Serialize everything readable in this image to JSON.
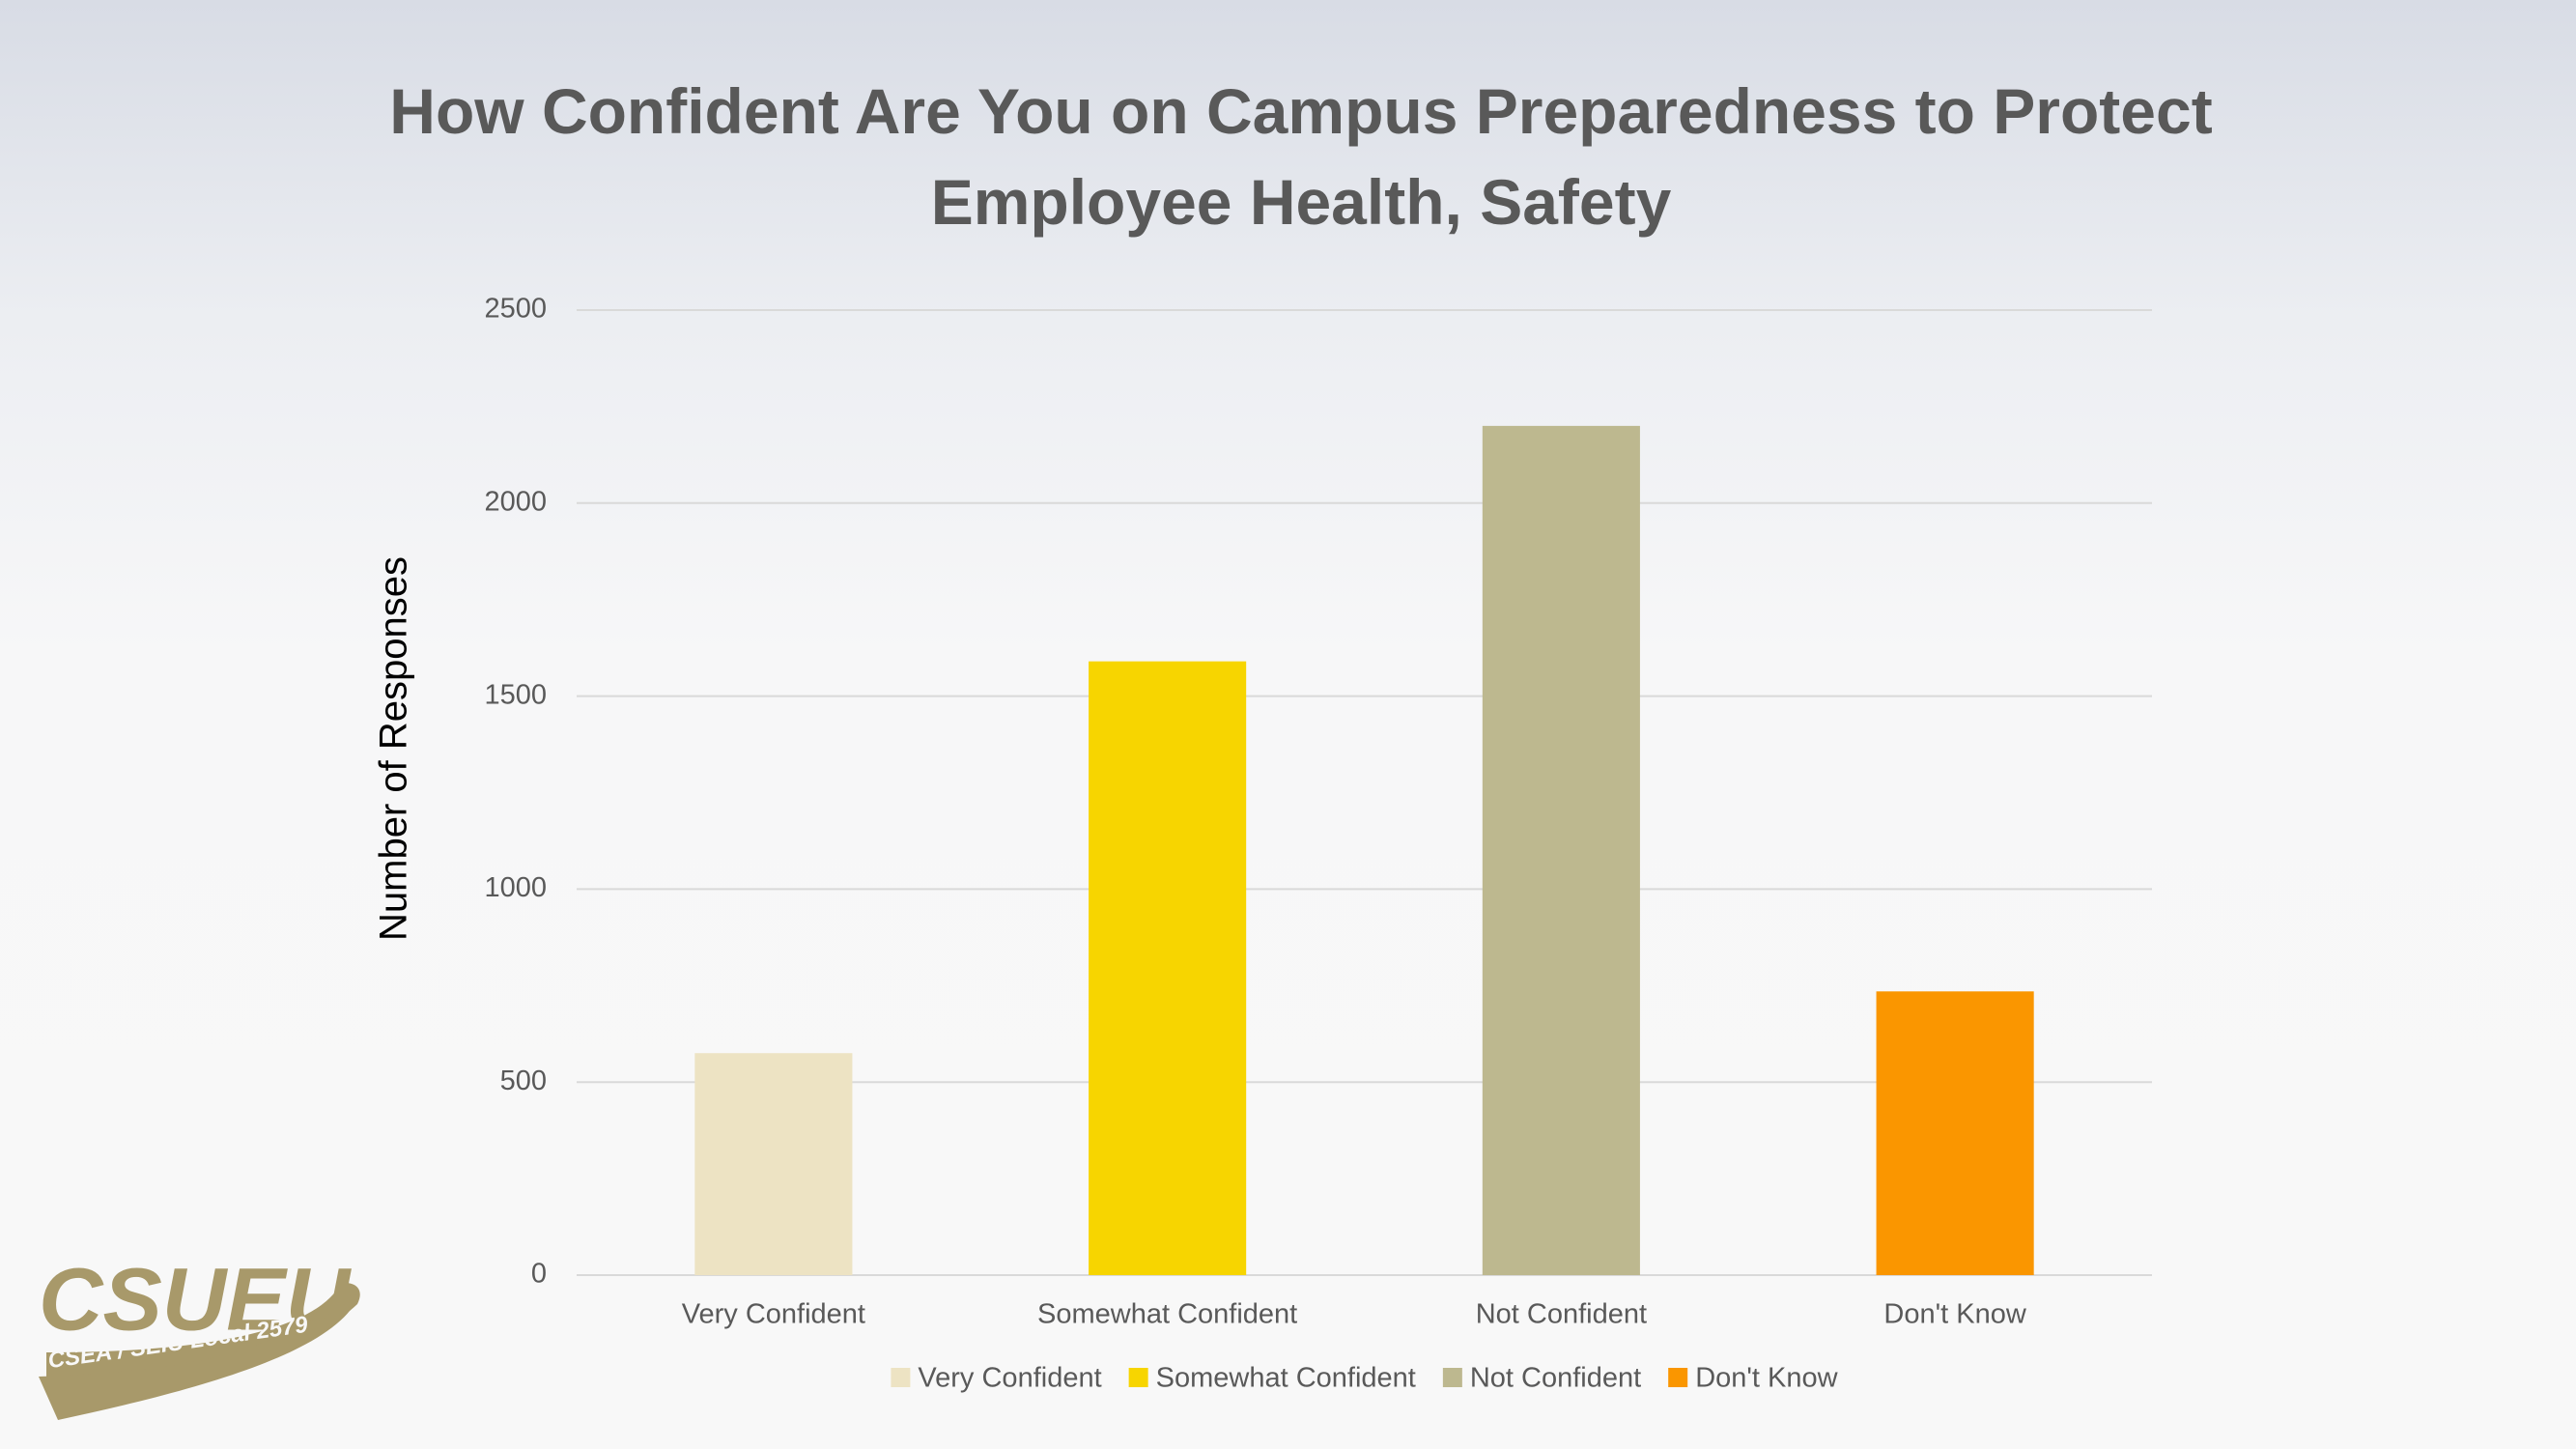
{
  "chart_data": {
    "type": "bar",
    "title": "How Confident Are You on Campus Preparedness to Protect Employee Health, Safety",
    "y_label": "Number of Responses",
    "categories": [
      "Very Confident",
      "Somewhat Confident",
      "Not Confident",
      "Don't Know"
    ],
    "values": [
      575,
      1590,
      2200,
      735
    ],
    "colors": [
      "#ede3c3",
      "#f7d500",
      "#bdb88f",
      "#fa9600"
    ],
    "ylim": [
      0,
      2500
    ],
    "yticks": [
      0,
      500,
      1000,
      1500,
      2000,
      2500
    ],
    "grid": true,
    "legend": "bottom"
  },
  "logo": {
    "name": "CSUEU",
    "subtitle": "CSEA / SEIU Local 2579"
  }
}
